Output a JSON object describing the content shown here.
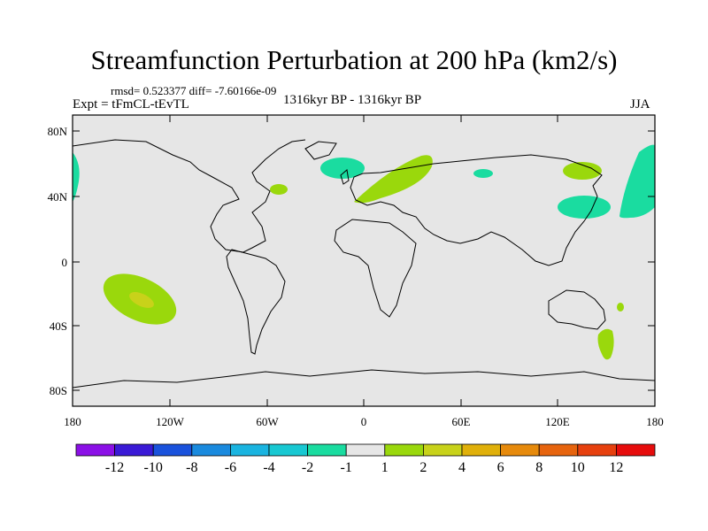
{
  "title": "Streamfunction Perturbation at 200 hPa (km2/s)",
  "rmsd_line": "rmsd= 0.523377 diff= -7.60166e-09",
  "left_label": "Expt = tFmCL-tEvTL",
  "center_label": "1316kyr BP - 1316kyr BP",
  "right_label": "JJA",
  "map": {
    "lat_ticks": [
      "80N",
      "40N",
      "0",
      "40S",
      "80S"
    ],
    "lon_ticks": [
      "180",
      "120W",
      "60W",
      "0",
      "60E",
      "120E",
      "180"
    ]
  },
  "colorbar": {
    "colors": [
      "#8b10e6",
      "#3a1ad6",
      "#1a52dc",
      "#1a8ade",
      "#1ab4e0",
      "#18c8d2",
      "#1adca0",
      "#e6e6e6",
      "#9ad80c",
      "#c8d21a",
      "#e0b00a",
      "#e68a0c",
      "#e6640e",
      "#e6400e",
      "#e60c0c"
    ],
    "labels": [
      "-12",
      "-10",
      "-8",
      "-6",
      "-4",
      "-2",
      "-1",
      "1",
      "2",
      "4",
      "6",
      "8",
      "10",
      "12"
    ]
  }
}
